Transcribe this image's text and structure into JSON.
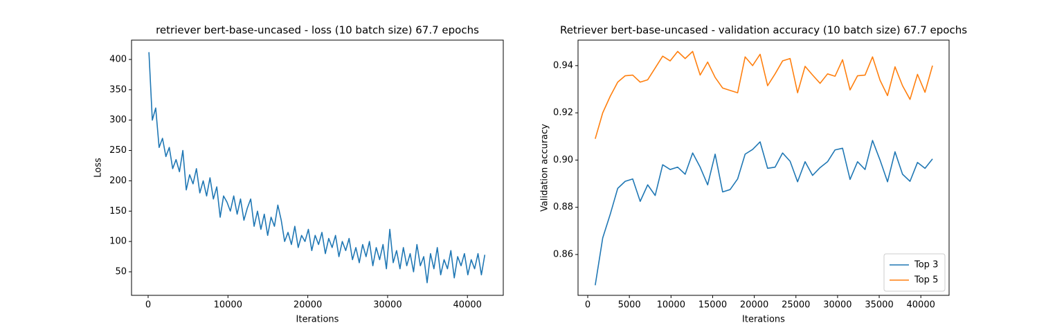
{
  "chart_data": [
    {
      "type": "line",
      "title": "retriever bert-base-uncased - loss (10 batch size) 67.7 epochs",
      "xlabel": "Iterations",
      "ylabel": "Loss",
      "color": "#1f77b4",
      "x": [
        100,
        525,
        950,
        1375,
        1800,
        2225,
        2650,
        3075,
        3500,
        3925,
        4350,
        4775,
        5200,
        5625,
        6050,
        6475,
        6900,
        7325,
        7750,
        8175,
        8600,
        9025,
        9450,
        9875,
        10300,
        10725,
        11150,
        11575,
        12000,
        12425,
        12850,
        13275,
        13700,
        14125,
        14550,
        14975,
        15400,
        15825,
        16250,
        16675,
        17100,
        17525,
        17950,
        18375,
        18800,
        19225,
        19650,
        20075,
        20500,
        20925,
        21350,
        21775,
        22200,
        22625,
        23050,
        23475,
        23900,
        24325,
        24750,
        25175,
        25600,
        26025,
        26450,
        26875,
        27300,
        27725,
        28150,
        28575,
        29000,
        29425,
        29850,
        30275,
        30700,
        31125,
        31550,
        31975,
        32400,
        32825,
        33250,
        33675,
        34100,
        34525,
        34950,
        35375,
        35800,
        36225,
        36650,
        37075,
        37500,
        37925,
        38350,
        38775,
        39200,
        39625,
        40050,
        40475,
        40900,
        41325,
        41750,
        42175
      ],
      "values": [
        412,
        300,
        320,
        255,
        270,
        240,
        255,
        220,
        235,
        215,
        250,
        185,
        210,
        195,
        220,
        180,
        200,
        175,
        205,
        170,
        190,
        140,
        175,
        165,
        150,
        175,
        145,
        170,
        135,
        155,
        170,
        125,
        150,
        120,
        145,
        110,
        140,
        125,
        160,
        135,
        100,
        115,
        95,
        125,
        90,
        110,
        100,
        120,
        85,
        110,
        95,
        115,
        80,
        105,
        90,
        110,
        75,
        100,
        85,
        105,
        70,
        90,
        65,
        95,
        75,
        100,
        60,
        90,
        70,
        95,
        55,
        120,
        65,
        85,
        55,
        90,
        60,
        80,
        50,
        95,
        60,
        75,
        32,
        80,
        55,
        90,
        45,
        70,
        55,
        85,
        40,
        75,
        60,
        80,
        45,
        70,
        55,
        80,
        45,
        78
      ],
      "xlim": [
        -2080,
        44490
      ],
      "xticks": [
        0,
        10000,
        20000,
        30000,
        40000
      ],
      "ylim": [
        11.2,
        431.9
      ],
      "yticks": [
        50,
        100,
        150,
        200,
        250,
        300,
        350,
        400
      ]
    },
    {
      "type": "line",
      "title": "Retriever bert-base-uncased - validation accuracy (10 batch size) 67.7 epochs",
      "xlabel": "Iterations",
      "ylabel": "Validation accuracy",
      "legend": "lower right",
      "x": [
        900,
        1800,
        2700,
        3600,
        4500,
        5400,
        6300,
        7200,
        8100,
        9000,
        9900,
        10800,
        11700,
        12600,
        13500,
        14400,
        15300,
        16200,
        17100,
        18000,
        18900,
        19800,
        20700,
        21600,
        22500,
        23400,
        24300,
        25200,
        26100,
        27000,
        27900,
        28800,
        29700,
        30600,
        31500,
        32400,
        33300,
        34200,
        35100,
        36000,
        36900,
        37800,
        38700,
        39600,
        40500,
        41400
      ],
      "series": [
        {
          "name": "Top 3",
          "color": "#1f77b4",
          "values": [
            0.847,
            0.867,
            0.877,
            0.888,
            0.891,
            0.892,
            0.8825,
            0.8895,
            0.885,
            0.898,
            0.896,
            0.897,
            0.894,
            0.903,
            0.897,
            0.8895,
            0.9025,
            0.8865,
            0.8875,
            0.892,
            0.9025,
            0.9045,
            0.9077,
            0.8965,
            0.897,
            0.903,
            0.8995,
            0.8908,
            0.8993,
            0.8935,
            0.8968,
            0.8993,
            0.9043,
            0.905,
            0.8918,
            0.8993,
            0.896,
            0.9083,
            0.9,
            0.8908,
            0.9035,
            0.894,
            0.891,
            0.899,
            0.8965,
            0.9005
          ]
        },
        {
          "name": "Top 5",
          "color": "#ff7f0e",
          "values": [
            0.909,
            0.92,
            0.927,
            0.933,
            0.9357,
            0.936,
            0.933,
            0.934,
            0.939,
            0.944,
            0.942,
            0.946,
            0.943,
            0.946,
            0.936,
            0.9415,
            0.935,
            0.9305,
            0.9295,
            0.9285,
            0.9437,
            0.94,
            0.9448,
            0.9315,
            0.9365,
            0.942,
            0.943,
            0.9285,
            0.9397,
            0.936,
            0.9325,
            0.9365,
            0.9355,
            0.9425,
            0.9297,
            0.9357,
            0.936,
            0.9437,
            0.9338,
            0.9273,
            0.9395,
            0.9315,
            0.9257,
            0.9363,
            0.9287,
            0.94
          ]
        }
      ],
      "xlim": [
        -1164,
        43392
      ],
      "xticks": [
        0,
        5000,
        10000,
        15000,
        20000,
        25000,
        30000,
        35000,
        40000
      ],
      "ylim": [
        0.8427,
        0.9508
      ],
      "yticks": [
        0.86,
        0.88,
        {
          "value": 0.9,
          "label": "0.90"
        },
        0.92,
        0.94
      ]
    }
  ]
}
